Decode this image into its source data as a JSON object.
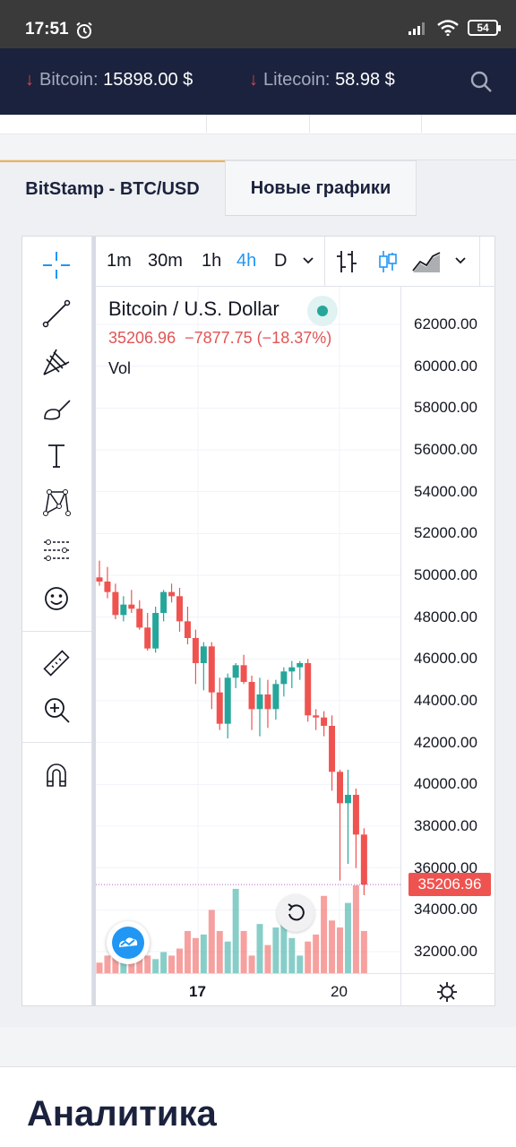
{
  "status": {
    "time": "17:51",
    "battery": "54"
  },
  "ticker": [
    {
      "name": "Bitcoin:",
      "value": "15898.00 $"
    },
    {
      "name": "Litecoin:",
      "value": "58.98 $"
    }
  ],
  "tabs": [
    {
      "label": "BitStamp - BTC/USD"
    },
    {
      "label": "Новые графики"
    }
  ],
  "timeframes": [
    "1m",
    "30m",
    "1h",
    "4h",
    "D"
  ],
  "active_timeframe": "4h",
  "legend": {
    "title": "Bitcoin / U.S. Dollar",
    "price": "35206.96",
    "change": "−7877.75 (−18.37%)",
    "vol": "Vol"
  },
  "price_badge": "35206.96",
  "colors": {
    "up": "#26a69a",
    "down": "#ef5350",
    "accent": "#2196f3",
    "header": "#1b223d"
  },
  "chart_data": {
    "type": "candlestick",
    "y_ticks": [
      "62000.00",
      "60000.00",
      "58000.00",
      "56000.00",
      "54000.00",
      "52000.00",
      "50000.00",
      "48000.00",
      "46000.00",
      "44000.00",
      "42000.00",
      "40000.00",
      "38000.00",
      "36000.00",
      "34000.00",
      "32000.00"
    ],
    "ylim": [
      31000,
      63000
    ],
    "x_ticks": [
      "17",
      "20"
    ],
    "candles": [
      {
        "o": 49900,
        "h": 50700,
        "l": 49500,
        "c": 49700
      },
      {
        "o": 49700,
        "h": 50400,
        "l": 48900,
        "c": 49200
      },
      {
        "o": 49200,
        "h": 49600,
        "l": 47900,
        "c": 48100
      },
      {
        "o": 48100,
        "h": 49000,
        "l": 47800,
        "c": 48600
      },
      {
        "o": 48600,
        "h": 49300,
        "l": 48200,
        "c": 48400
      },
      {
        "o": 48400,
        "h": 48800,
        "l": 47400,
        "c": 47500
      },
      {
        "o": 47500,
        "h": 48200,
        "l": 46400,
        "c": 46500
      },
      {
        "o": 46500,
        "h": 48500,
        "l": 46300,
        "c": 48200
      },
      {
        "o": 48200,
        "h": 49300,
        "l": 47800,
        "c": 49200
      },
      {
        "o": 49200,
        "h": 49600,
        "l": 48700,
        "c": 49000
      },
      {
        "o": 49000,
        "h": 49400,
        "l": 47300,
        "c": 47800
      },
      {
        "o": 47800,
        "h": 48500,
        "l": 46700,
        "c": 47000
      },
      {
        "o": 47000,
        "h": 47400,
        "l": 44800,
        "c": 45800
      },
      {
        "o": 45800,
        "h": 46800,
        "l": 44500,
        "c": 46600
      },
      {
        "o": 46600,
        "h": 46800,
        "l": 43600,
        "c": 44400
      },
      {
        "o": 44400,
        "h": 45100,
        "l": 42600,
        "c": 42900
      },
      {
        "o": 42900,
        "h": 45300,
        "l": 42200,
        "c": 45100
      },
      {
        "o": 45100,
        "h": 45800,
        "l": 44600,
        "c": 45700
      },
      {
        "o": 45700,
        "h": 46200,
        "l": 44800,
        "c": 44900
      },
      {
        "o": 44900,
        "h": 45200,
        "l": 42600,
        "c": 43600
      },
      {
        "o": 43600,
        "h": 45100,
        "l": 42300,
        "c": 44300
      },
      {
        "o": 44300,
        "h": 45000,
        "l": 42700,
        "c": 43600
      },
      {
        "o": 43600,
        "h": 45000,
        "l": 43100,
        "c": 44800
      },
      {
        "o": 44800,
        "h": 45600,
        "l": 44200,
        "c": 45400
      },
      {
        "o": 45400,
        "h": 45900,
        "l": 44600,
        "c": 45600
      },
      {
        "o": 45600,
        "h": 45900,
        "l": 45000,
        "c": 45800
      },
      {
        "o": 45800,
        "h": 46000,
        "l": 43000,
        "c": 43300
      },
      {
        "o": 43300,
        "h": 43600,
        "l": 42600,
        "c": 43200
      },
      {
        "o": 43200,
        "h": 43500,
        "l": 42300,
        "c": 42800
      },
      {
        "o": 42800,
        "h": 43300,
        "l": 39700,
        "c": 40600
      },
      {
        "o": 40600,
        "h": 40700,
        "l": 35400,
        "c": 39100
      },
      {
        "o": 39100,
        "h": 40700,
        "l": 36200,
        "c": 39500
      },
      {
        "o": 39500,
        "h": 39800,
        "l": 36000,
        "c": 37600
      },
      {
        "o": 37600,
        "h": 37900,
        "l": 34700,
        "c": 35207
      }
    ],
    "volumes": [
      3,
      5,
      6,
      5,
      6,
      7,
      5,
      4,
      6,
      5,
      7,
      12,
      10,
      11,
      18,
      12,
      9,
      24,
      12,
      5,
      14,
      8,
      13,
      14,
      10,
      5,
      9,
      11,
      22,
      15,
      13,
      20,
      25,
      12
    ]
  },
  "section_title": "Аналитика"
}
